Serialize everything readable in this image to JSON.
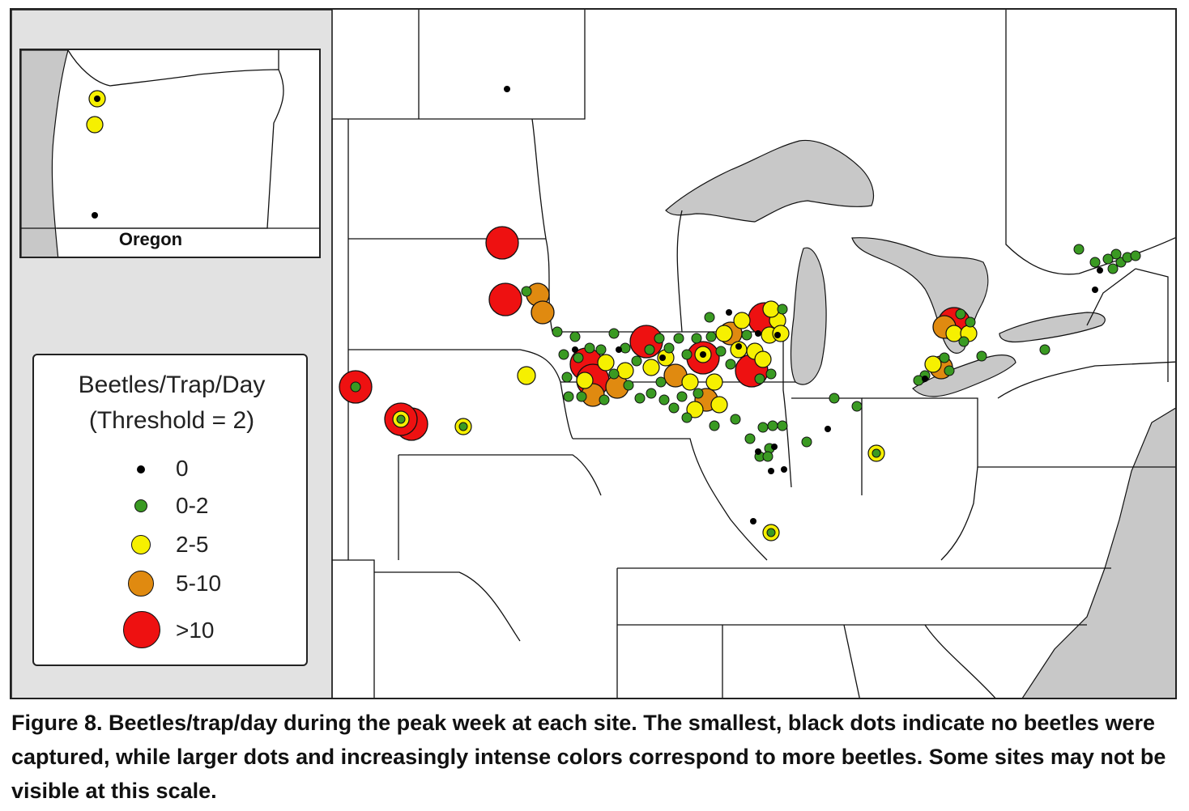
{
  "legend": {
    "title_line1": "Beetles/Trap/Day",
    "title_line2": "(Threshold = 2)",
    "items": [
      {
        "label": "0",
        "color": "#000000"
      },
      {
        "label": "0-2",
        "color": "#3a9a22"
      },
      {
        "label": "2-5",
        "color": "#f6f000"
      },
      {
        "label": "5-10",
        "color": "#e08a10"
      },
      {
        "label": ">10",
        "color": "#ee1111"
      }
    ]
  },
  "inset": {
    "label": "Oregon"
  },
  "caption": "Figure 8. Beetles/trap/day during the peak week at each site. The smallest, black dots indicate no beetles were captured, while larger dots and increasingly intense colors correspond to more beetles. Some sites may not be visible at this scale.",
  "colors": {
    "water": "#c8c8c8",
    "land": "#ffffff",
    "border": "#111111",
    "frame_panel": "#e2e2e2"
  }
}
